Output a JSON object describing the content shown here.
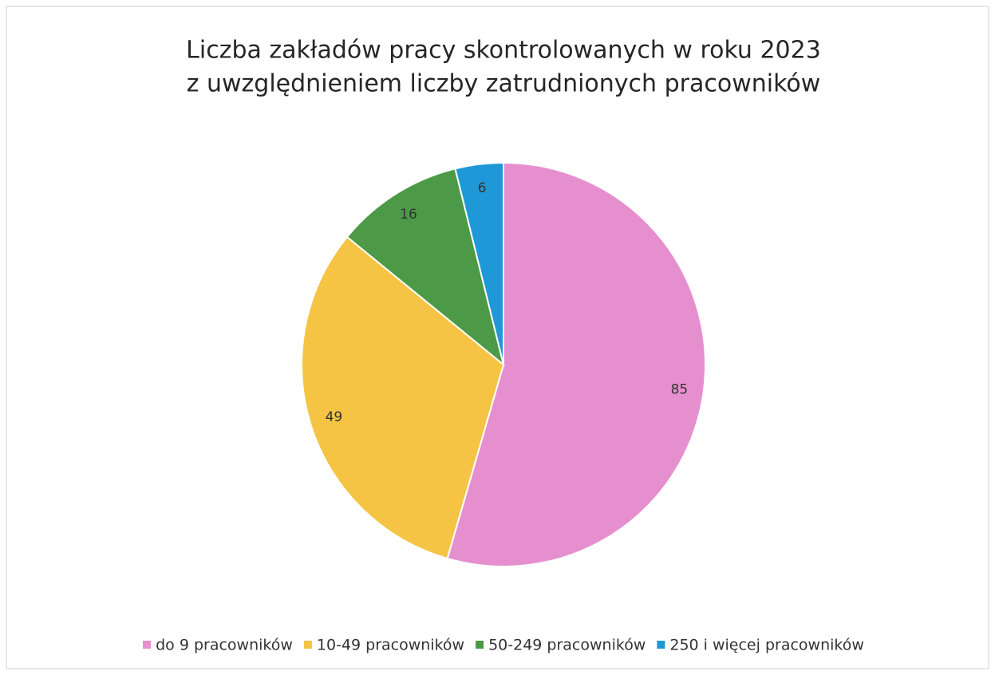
{
  "chart_data": {
    "type": "pie",
    "title": [
      "Liczba zakładów pracy skontrolowanych w roku 2023",
      "z uwzględnieniem liczby zatrudnionych pracowników"
    ],
    "categories": [
      "do 9 pracowników",
      "10-49 pracowników",
      "50-249 pracowników",
      "250 i więcej pracowników"
    ],
    "values": [
      85,
      49,
      16,
      6
    ],
    "colors": [
      "#e68fcf",
      "#f5c444",
      "#4c9a47",
      "#1f98d8"
    ],
    "legend": "bottom"
  }
}
